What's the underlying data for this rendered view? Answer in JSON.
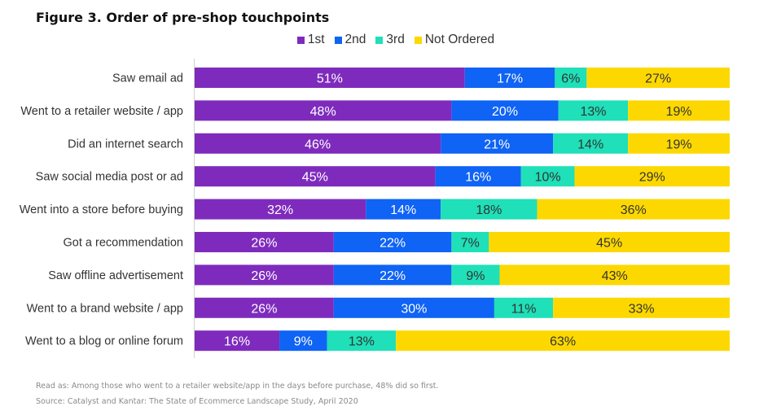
{
  "page": {
    "title": "Figure 3. Order of pre-shop touchpoints",
    "footnote": "Read as: Among those who went to a retailer website/app in the days before purchase, 48% did so first.",
    "source": "Source: Catalyst and Kantar: The State of Ecommerce Landscape Study, April 2020"
  },
  "chart_data": {
    "type": "bar",
    "orientation": "horizontal",
    "stacked": true,
    "title": "Figure 3. Order of pre-shop touchpoints",
    "xlabel": "",
    "ylabel": "",
    "xlim": [
      0,
      100
    ],
    "legend_position": "top",
    "categories": [
      "Saw email ad",
      "Went to a retailer website / app",
      "Did an internet search",
      "Saw social media post or ad",
      "Went into a store before buying",
      "Got a recommendation",
      "Saw offline advertisement",
      "Went to a brand website / app",
      "Went to a blog or online forum"
    ],
    "series": [
      {
        "name": "1st",
        "color": "#7e2bbd",
        "label_color": "#ffffff",
        "values": [
          51,
          48,
          46,
          45,
          32,
          26,
          26,
          26,
          16
        ]
      },
      {
        "name": "2nd",
        "color": "#0f63f5",
        "label_color": "#ffffff",
        "values": [
          17,
          20,
          21,
          16,
          14,
          22,
          22,
          30,
          9
        ]
      },
      {
        "name": "3rd",
        "color": "#1fe0b8",
        "label_color": "#333333",
        "values": [
          6,
          13,
          14,
          10,
          18,
          7,
          9,
          11,
          13
        ]
      },
      {
        "name": "Not Ordered",
        "color": "#fdd800",
        "label_color": "#333333",
        "values": [
          27,
          19,
          19,
          29,
          36,
          45,
          43,
          33,
          63
        ]
      }
    ]
  }
}
